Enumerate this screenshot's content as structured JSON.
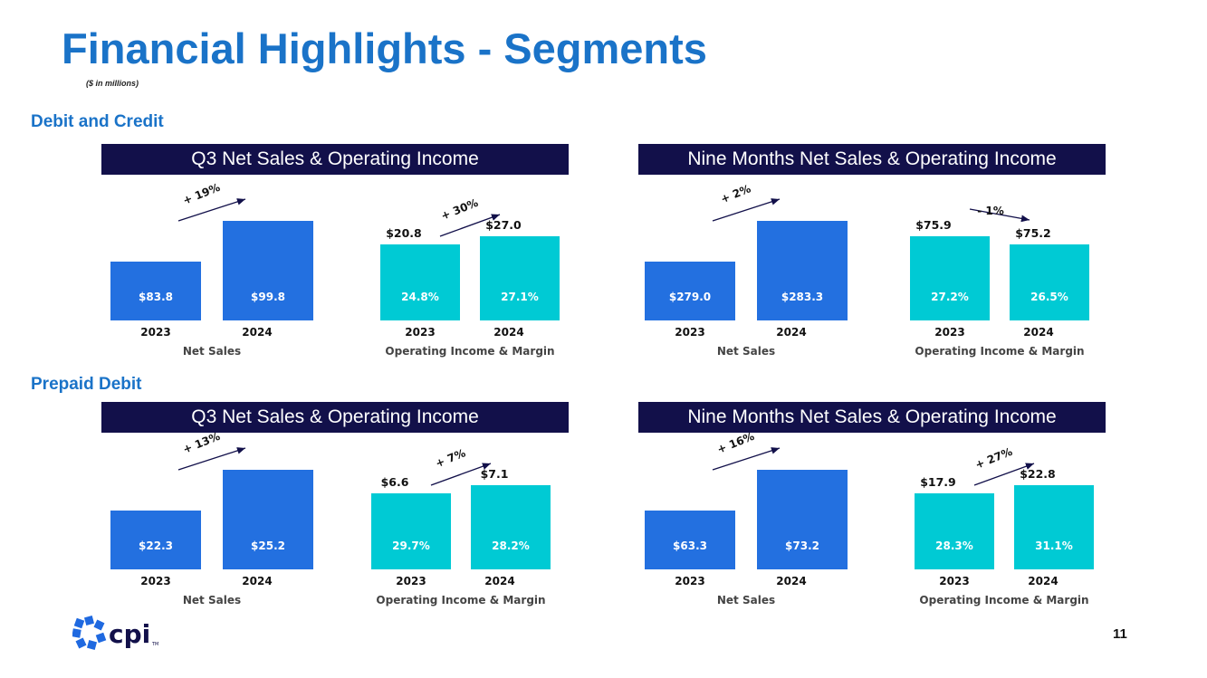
{
  "header": {
    "title": "Financial Highlights - Segments",
    "subtitle": "($ in millions)"
  },
  "sections": {
    "debit_credit": "Debit and Credit",
    "prepaid": "Prepaid Debit"
  },
  "banners": {
    "q3": "Q3 Net Sales & Operating Income",
    "nine_months": "Nine Months Net Sales & Operating Income"
  },
  "footer": {
    "logo_text": "cpi",
    "trademark": "TM",
    "page_number": "11"
  },
  "colors": {
    "net_sales": "#2370e0",
    "operating_income": "#00cad4",
    "banner": "#12104a",
    "title": "#1a73c8",
    "arrow": "#12104a"
  },
  "chart_data": [
    {
      "id": "dc-q3-net-sales",
      "type": "bar",
      "segment": "Debit and Credit",
      "period": "Q3",
      "title": "Net Sales",
      "categories": [
        "2023",
        "2024"
      ],
      "values": [
        83.8,
        99.8
      ],
      "labels": [
        "$83.8",
        "$99.8"
      ],
      "change": "+ 19%",
      "color": "#2370e0"
    },
    {
      "id": "dc-q3-operating-income",
      "type": "bar",
      "segment": "Debit and Credit",
      "period": "Q3",
      "title": "Operating Income & Margin",
      "categories": [
        "2023",
        "2024"
      ],
      "values": [
        20.8,
        27.0
      ],
      "labels": [
        "24.8%",
        "27.1%"
      ],
      "top_labels": [
        "$20.8",
        "$27.0"
      ],
      "margins": [
        24.8,
        27.1
      ],
      "change": "+ 30%",
      "color": "#00cad4"
    },
    {
      "id": "dc-nine-months-net-sales",
      "type": "bar",
      "segment": "Debit and Credit",
      "period": "Nine Months",
      "title": "Net Sales",
      "categories": [
        "2023",
        "2024"
      ],
      "values": [
        279.0,
        283.3
      ],
      "labels": [
        "$279.0",
        "$283.3"
      ],
      "change": "+ 2%",
      "color": "#2370e0"
    },
    {
      "id": "dc-nine-months-operating-income",
      "type": "bar",
      "segment": "Debit and Credit",
      "period": "Nine Months",
      "title": "Operating Income & Margin",
      "categories": [
        "2023",
        "2024"
      ],
      "values": [
        75.9,
        75.2
      ],
      "labels": [
        "27.2%",
        "26.5%"
      ],
      "top_labels": [
        "$75.9",
        "$75.2"
      ],
      "margins": [
        27.2,
        26.5
      ],
      "change": "- 1%",
      "color": "#00cad4"
    },
    {
      "id": "pp-q3-net-sales",
      "type": "bar",
      "segment": "Prepaid Debit",
      "period": "Q3",
      "title": "Net Sales",
      "categories": [
        "2023",
        "2024"
      ],
      "values": [
        22.3,
        25.2
      ],
      "labels": [
        "$22.3",
        "$25.2"
      ],
      "change": "+ 13%",
      "color": "#2370e0"
    },
    {
      "id": "pp-q3-operating-income",
      "type": "bar",
      "segment": "Prepaid Debit",
      "period": "Q3",
      "title": "Operating Income & Margin",
      "categories": [
        "2023",
        "2024"
      ],
      "values": [
        6.6,
        7.1
      ],
      "labels": [
        "29.7%",
        "28.2%"
      ],
      "top_labels": [
        "$6.6",
        "$7.1"
      ],
      "margins": [
        29.7,
        28.2
      ],
      "change": "+ 7%",
      "color": "#00cad4"
    },
    {
      "id": "pp-nine-months-net-sales",
      "type": "bar",
      "segment": "Prepaid Debit",
      "period": "Nine Months",
      "title": "Net Sales",
      "categories": [
        "2023",
        "2024"
      ],
      "values": [
        63.3,
        73.2
      ],
      "labels": [
        "$63.3",
        "$73.2"
      ],
      "change": "+ 16%",
      "color": "#2370e0"
    },
    {
      "id": "pp-nine-months-operating-income",
      "type": "bar",
      "segment": "Prepaid Debit",
      "period": "Nine Months",
      "title": "Operating Income & Margin",
      "categories": [
        "2023",
        "2024"
      ],
      "values": [
        17.9,
        22.8
      ],
      "labels": [
        "28.3%",
        "31.1%"
      ],
      "top_labels": [
        "$17.9",
        "$22.8"
      ],
      "margins": [
        28.3,
        31.1
      ],
      "change": "+ 27%",
      "color": "#00cad4"
    }
  ]
}
